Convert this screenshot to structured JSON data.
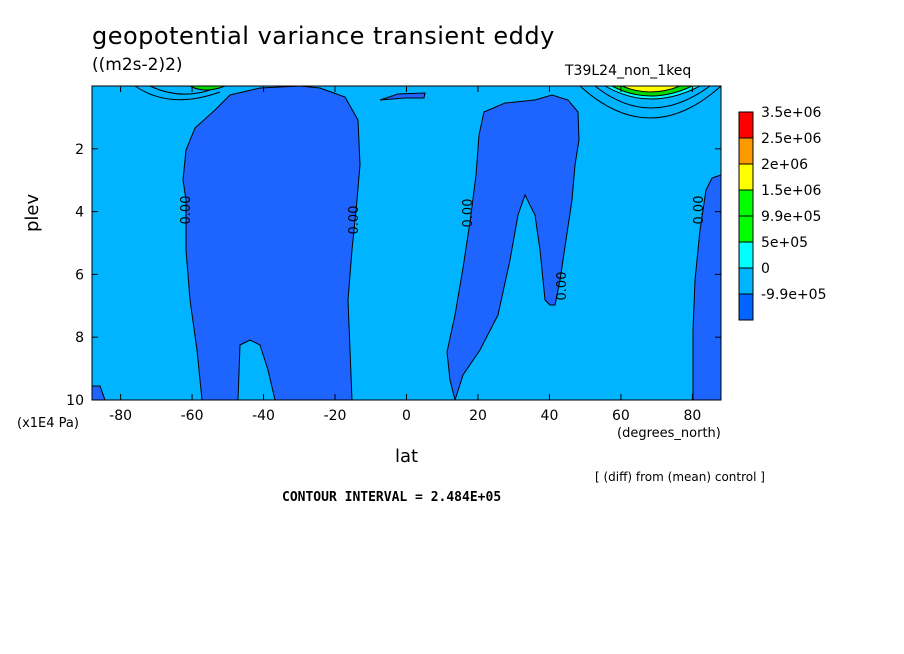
{
  "chart_data": {
    "type": "contour",
    "title": "geopotential variance transient eddy",
    "units": "((m2s-2)2)",
    "experiment": "T39L24_non_1keq",
    "xlabel": "lat",
    "ylabel": "plev",
    "x_unit": "(degrees_north)",
    "y_unit": "(x1E4 Pa)",
    "note": "[ (diff) from (mean) control ]",
    "contour_interval": "CONTOUR INTERVAL = 2.484E+05",
    "xlim": [
      -88,
      88
    ],
    "ylim": [
      10,
      0
    ],
    "x_ticks": [
      "-80",
      "-60",
      "-40",
      "-20",
      "0",
      "20",
      "40",
      "60",
      "80"
    ],
    "y_ticks": [
      "2",
      "4",
      "6",
      "8",
      "10"
    ],
    "contour_labels": [
      "0.00",
      "0.00",
      "0.00",
      "0.00",
      "0.00"
    ],
    "legend": [
      {
        "label": "3.5e+06",
        "color": "#ff0000"
      },
      {
        "label": "2.5e+06",
        "color": "#ff9900"
      },
      {
        "label": "2e+06",
        "color": "#ffff00"
      },
      {
        "label": "1.5e+06",
        "color": "#00ff00"
      },
      {
        "label": "9.9e+05",
        "color": "#00ff00"
      },
      {
        "label": "5e+05",
        "color": "#00ffff"
      },
      {
        "label": "0",
        "color": "#00b4ff"
      },
      {
        "label": "-9.9e+05",
        "color": "#0064ff"
      }
    ],
    "colors": {
      "background_field": "#00b4ff",
      "negative_field": "#1e64ff",
      "peak_green": "#00dc00",
      "peak_yellow": "#ffff00"
    }
  }
}
